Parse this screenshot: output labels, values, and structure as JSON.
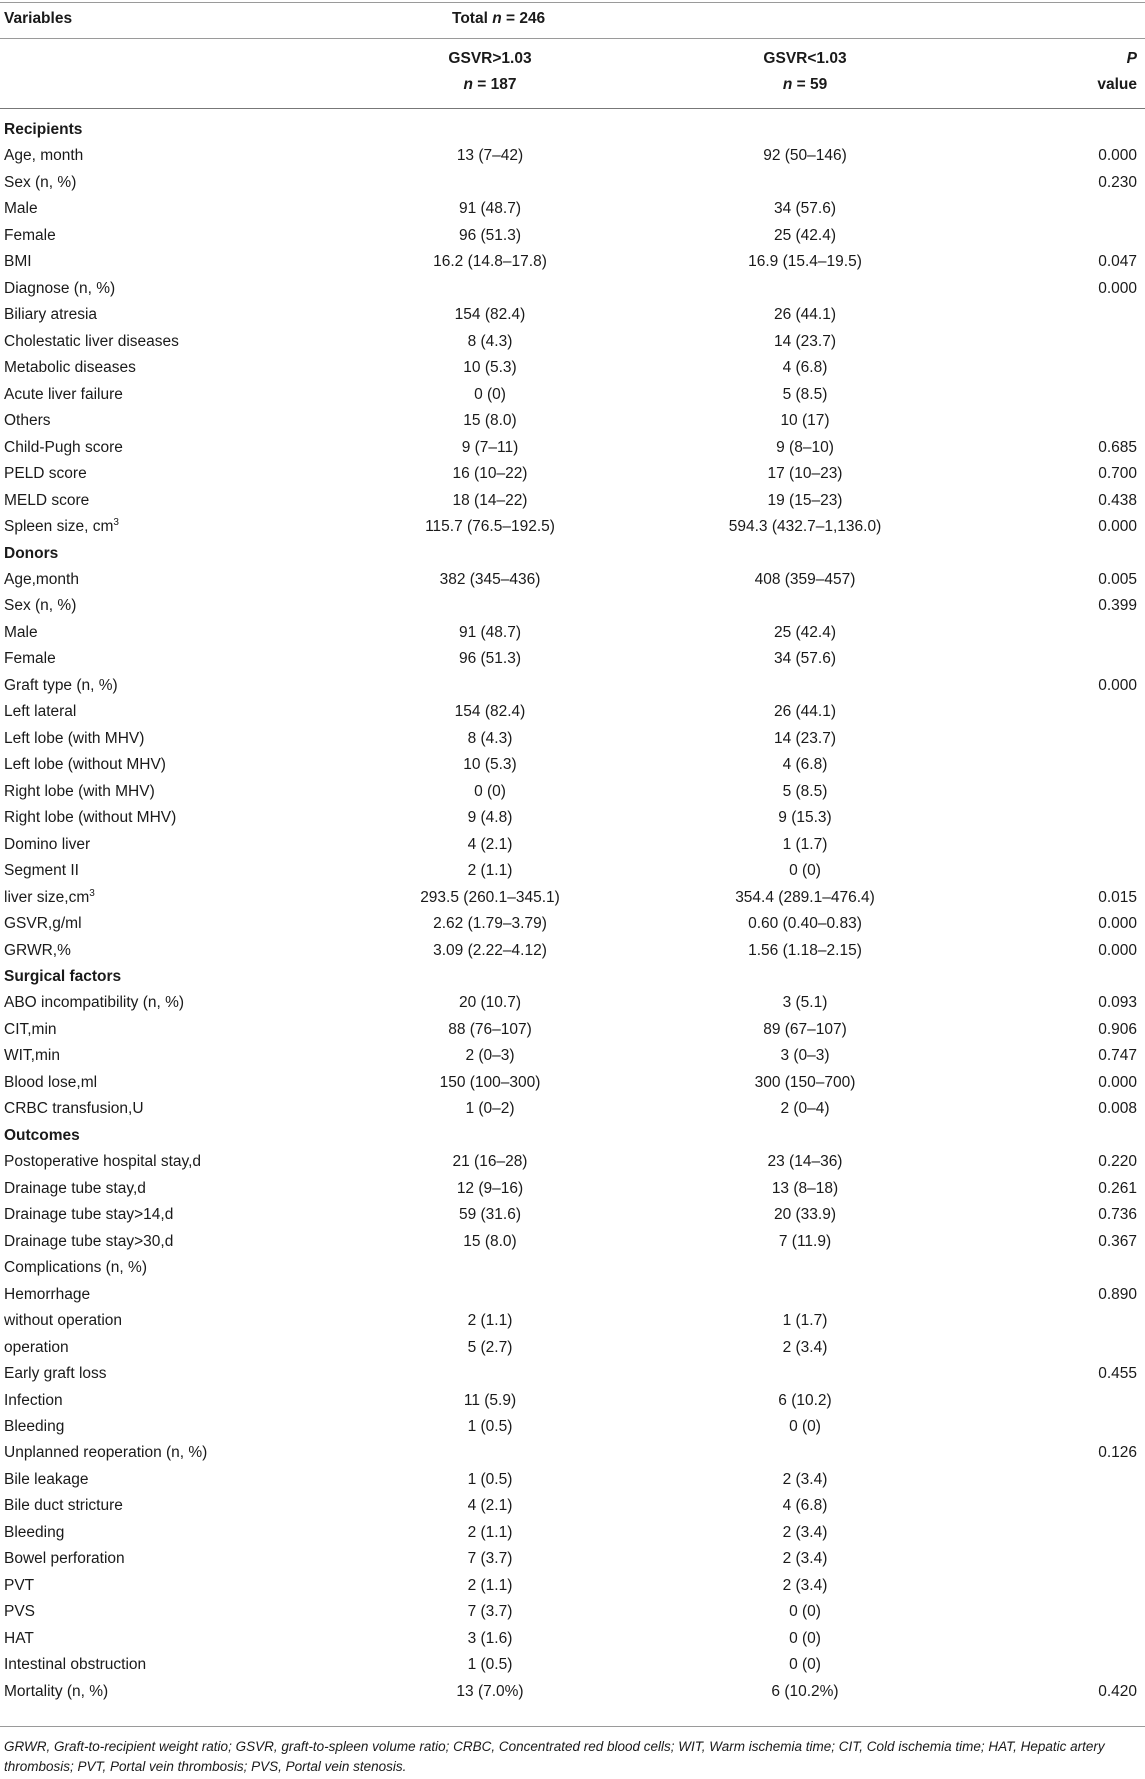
{
  "header": {
    "variables": "Variables",
    "total_prefix": "Total ",
    "total_n": "n",
    "total_value": " = 246",
    "group1_label": "GSVR>1.03",
    "group1_n": "n",
    "group1_value": " = 187",
    "group2_label": "GSVR<1.03",
    "group2_n": "n",
    "group2_value": " = 59",
    "p_label": "P",
    "p_value_label": "value"
  },
  "rows": [
    {
      "type": "section",
      "label": "Recipients"
    },
    {
      "label": "Age, month",
      "g1": "13 (7–42)",
      "g2": "92 (50–146)",
      "p": "0.000"
    },
    {
      "label": "Sex (n, %)",
      "g1": "",
      "g2": "",
      "p": "0.230"
    },
    {
      "label": "Male",
      "g1": "91 (48.7)",
      "g2": "34 (57.6)",
      "p": ""
    },
    {
      "label": "Female",
      "g1": "96 (51.3)",
      "g2": "25 (42.4)",
      "p": ""
    },
    {
      "label": "BMI",
      "g1": "16.2 (14.8–17.8)",
      "g2": "16.9 (15.4–19.5)",
      "p": "0.047"
    },
    {
      "label": "Diagnose (n, %)",
      "g1": "",
      "g2": "",
      "p": "0.000"
    },
    {
      "label": "Biliary atresia",
      "g1": "154 (82.4)",
      "g2": "26 (44.1)",
      "p": ""
    },
    {
      "label": "Cholestatic liver diseases",
      "g1": "8 (4.3)",
      "g2": "14 (23.7)",
      "p": ""
    },
    {
      "label": "Metabolic diseases",
      "g1": "10 (5.3)",
      "g2": "4 (6.8)",
      "p": ""
    },
    {
      "label": "Acute liver failure",
      "g1": "0 (0)",
      "g2": "5 (8.5)",
      "p": ""
    },
    {
      "label": "Others",
      "g1": "15 (8.0)",
      "g2": "10 (17)",
      "p": ""
    },
    {
      "label": "Child-Pugh score",
      "g1": "9 (7–11)",
      "g2": "9 (8–10)",
      "p": "0.685"
    },
    {
      "label": "PELD score",
      "g1": "16 (10–22)",
      "g2": "17 (10–23)",
      "p": "0.700"
    },
    {
      "label": "MELD score",
      "g1": "18 (14–22)",
      "g2": "19 (15–23)",
      "p": "0.438"
    },
    {
      "label": "Spleen size, cm",
      "sup": "3",
      "g1": "115.7 (76.5–192.5)",
      "g2": "594.3 (432.7–1,136.0)",
      "p": "0.000"
    },
    {
      "type": "section",
      "label": "Donors"
    },
    {
      "label": "Age,month",
      "g1": "382 (345–436)",
      "g2": "408 (359–457)",
      "p": "0.005"
    },
    {
      "label": "Sex (n, %)",
      "g1": "",
      "g2": "",
      "p": "0.399"
    },
    {
      "label": "Male",
      "g1": "91 (48.7)",
      "g2": "25 (42.4)",
      "p": ""
    },
    {
      "label": "Female",
      "g1": "96 (51.3)",
      "g2": "34 (57.6)",
      "p": ""
    },
    {
      "label": "Graft type (n, %)",
      "g1": "",
      "g2": "",
      "p": "0.000"
    },
    {
      "label": "Left lateral",
      "g1": "154 (82.4)",
      "g2": "26 (44.1)",
      "p": ""
    },
    {
      "label": "Left lobe (with MHV)",
      "g1": "8 (4.3)",
      "g2": "14 (23.7)",
      "p": ""
    },
    {
      "label": "Left lobe (without MHV)",
      "g1": "10 (5.3)",
      "g2": "4 (6.8)",
      "p": ""
    },
    {
      "label": "Right lobe (with MHV)",
      "g1": "0 (0)",
      "g2": "5 (8.5)",
      "p": ""
    },
    {
      "label": "Right lobe (without MHV)",
      "g1": "9 (4.8)",
      "g2": "9 (15.3)",
      "p": ""
    },
    {
      "label": "Domino liver",
      "g1": "4 (2.1)",
      "g2": "1 (1.7)",
      "p": ""
    },
    {
      "label": "Segment II",
      "g1": "2 (1.1)",
      "g2": "0 (0)",
      "p": ""
    },
    {
      "label": "liver size,cm",
      "sup": "3",
      "g1": "293.5 (260.1–345.1)",
      "g2": "354.4 (289.1–476.4)",
      "p": "0.015"
    },
    {
      "label": "GSVR,g/ml",
      "g1": "2.62 (1.79–3.79)",
      "g2": "0.60 (0.40–0.83)",
      "p": "0.000"
    },
    {
      "label": "GRWR,%",
      "g1": "3.09 (2.22–4.12)",
      "g2": "1.56 (1.18–2.15)",
      "p": "0.000"
    },
    {
      "type": "section",
      "label": "Surgical factors"
    },
    {
      "label": "ABO incompatibility (n, %)",
      "g1": "20 (10.7)",
      "g2": "3 (5.1)",
      "p": "0.093"
    },
    {
      "label": "CIT,min",
      "g1": "88 (76–107)",
      "g2": "89 (67–107)",
      "p": "0.906"
    },
    {
      "label": "WIT,min",
      "g1": "2 (0–3)",
      "g2": "3 (0–3)",
      "p": "0.747"
    },
    {
      "label": "Blood lose,ml",
      "g1": "150 (100–300)",
      "g2": "300 (150–700)",
      "p": "0.000"
    },
    {
      "label": "CRBC transfusion,U",
      "g1": "1 (0–2)",
      "g2": "2 (0–4)",
      "p": "0.008"
    },
    {
      "type": "section",
      "label": "Outcomes"
    },
    {
      "label": "Postoperative hospital stay,d",
      "g1": "21 (16–28)",
      "g2": "23 (14–36)",
      "p": "0.220"
    },
    {
      "label": "Drainage tube stay,d",
      "g1": "12 (9–16)",
      "g2": "13 (8–18)",
      "p": "0.261"
    },
    {
      "label": "Drainage tube stay>14,d",
      "g1": "59 (31.6)",
      "g2": "20 (33.9)",
      "p": "0.736"
    },
    {
      "label": "Drainage tube stay>30,d",
      "g1": "15 (8.0)",
      "g2": "7 (11.9)",
      "p": "0.367"
    },
    {
      "label": "Complications (n, %)",
      "g1": "",
      "g2": "",
      "p": ""
    },
    {
      "label": "Hemorrhage",
      "g1": "",
      "g2": "",
      "p": "0.890"
    },
    {
      "label": "without operation",
      "g1": "2 (1.1)",
      "g2": "1 (1.7)",
      "p": ""
    },
    {
      "label": "operation",
      "g1": "5 (2.7)",
      "g2": "2 (3.4)",
      "p": ""
    },
    {
      "label": "Early graft loss",
      "g1": "",
      "g2": "",
      "p": "0.455"
    },
    {
      "label": "Infection",
      "g1": "11 (5.9)",
      "g2": "6 (10.2)",
      "p": ""
    },
    {
      "label": "Bleeding",
      "g1": "1 (0.5)",
      "g2": "0 (0)",
      "p": ""
    },
    {
      "label": "Unplanned reoperation (n, %)",
      "g1": "",
      "g2": "",
      "p": "0.126"
    },
    {
      "label": "Bile leakage",
      "g1": "1 (0.5)",
      "g2": "2 (3.4)",
      "p": ""
    },
    {
      "label": "Bile duct stricture",
      "g1": "4 (2.1)",
      "g2": "4 (6.8)",
      "p": ""
    },
    {
      "label": "Bleeding",
      "g1": "2 (1.1)",
      "g2": "2 (3.4)",
      "p": ""
    },
    {
      "label": "Bowel perforation",
      "g1": "7 (3.7)",
      "g2": "2 (3.4)",
      "p": ""
    },
    {
      "label": "PVT",
      "g1": "2 (1.1)",
      "g2": "2 (3.4)",
      "p": ""
    },
    {
      "label": "PVS",
      "g1": "7 (3.7)",
      "g2": "0 (0)",
      "p": ""
    },
    {
      "label": "HAT",
      "g1": "3 (1.6)",
      "g2": "0 (0)",
      "p": ""
    },
    {
      "label": "Intestinal obstruction",
      "g1": "1 (0.5)",
      "g2": "0 (0)",
      "p": ""
    },
    {
      "label": "Mortality (n, %)",
      "g1": "13 (7.0%)",
      "g2": "6 (10.2%)",
      "p": "0.420"
    }
  ],
  "footer": {
    "note": "GRWR, Graft-to-recipient weight ratio; GSVR, graft-to-spleen volume ratio; CRBC, Concentrated red blood cells; WIT, Warm ischemia time; CIT, Cold ischemia time; HAT, Hepatic artery thrombosis; PVT, Portal vein thrombosis; PVS, Portal vein stenosis."
  }
}
